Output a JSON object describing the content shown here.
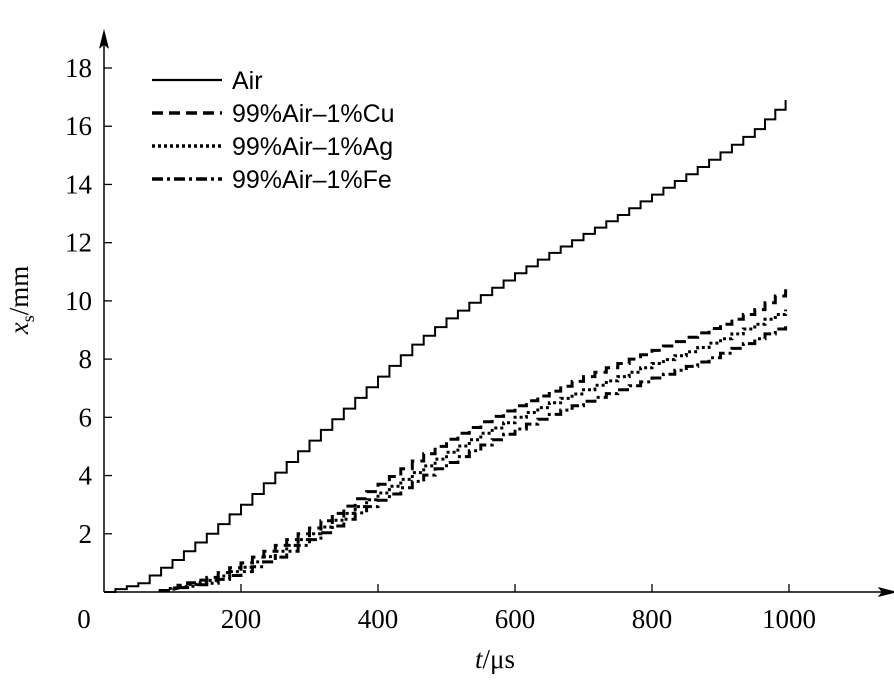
{
  "chart_data": {
    "type": "line",
    "xlabel": {
      "var": "t",
      "unit": "/μs"
    },
    "ylabel": {
      "var": "x",
      "sub": "s",
      "unit": "/mm"
    },
    "xlim": [
      0,
      1150
    ],
    "ylim": [
      0,
      19
    ],
    "xticks": [
      200,
      400,
      600,
      800,
      1000
    ],
    "yticks": [
      2,
      4,
      6,
      8,
      10,
      12,
      14,
      16,
      18
    ],
    "origin_label": "0",
    "grid": false,
    "legend_position": "top-left",
    "series": [
      {
        "name": "Air",
        "style": "solid",
        "x": [
          0,
          50,
          100,
          150,
          200,
          250,
          300,
          350,
          400,
          450,
          500,
          550,
          600,
          650,
          700,
          750,
          800,
          850,
          900,
          950,
          995
        ],
        "y": [
          0,
          0.3,
          1.1,
          2.0,
          3.0,
          4.1,
          5.2,
          6.3,
          7.4,
          8.5,
          9.4,
          10.2,
          10.95,
          11.65,
          12.3,
          12.95,
          13.65,
          14.35,
          15.1,
          15.9,
          16.9
        ]
      },
      {
        "name": "99%Air–1%Cu",
        "style": "dashed",
        "x": [
          80,
          150,
          200,
          250,
          300,
          350,
          400,
          450,
          500,
          550,
          600,
          650,
          700,
          750,
          800,
          850,
          900,
          950,
          995
        ],
        "y": [
          0.05,
          0.5,
          1.0,
          1.6,
          2.2,
          2.95,
          3.7,
          4.5,
          5.25,
          5.85,
          6.4,
          6.9,
          7.4,
          7.85,
          8.3,
          8.75,
          9.2,
          9.7,
          10.4
        ]
      },
      {
        "name": "99%Air–1%Ag",
        "style": "dotted",
        "x": [
          80,
          150,
          200,
          250,
          300,
          350,
          400,
          450,
          500,
          550,
          600,
          650,
          700,
          750,
          800,
          850,
          900,
          950,
          995
        ],
        "y": [
          0.05,
          0.4,
          0.85,
          1.4,
          2.0,
          2.7,
          3.4,
          4.1,
          4.8,
          5.45,
          6.0,
          6.5,
          6.95,
          7.4,
          7.85,
          8.25,
          8.7,
          9.2,
          9.7
        ]
      },
      {
        "name": "99%Air–1%Fe",
        "style": "dashdot",
        "x": [
          80,
          150,
          200,
          250,
          300,
          350,
          400,
          450,
          500,
          550,
          600,
          650,
          700,
          750,
          800,
          850,
          900,
          950,
          995
        ],
        "y": [
          0.05,
          0.3,
          0.7,
          1.2,
          1.8,
          2.5,
          3.15,
          3.8,
          4.45,
          5.05,
          5.6,
          6.1,
          6.55,
          6.95,
          7.35,
          7.75,
          8.2,
          8.7,
          9.2
        ]
      }
    ]
  },
  "colors": {
    "ink": "#000000",
    "background": "#ffffff"
  }
}
